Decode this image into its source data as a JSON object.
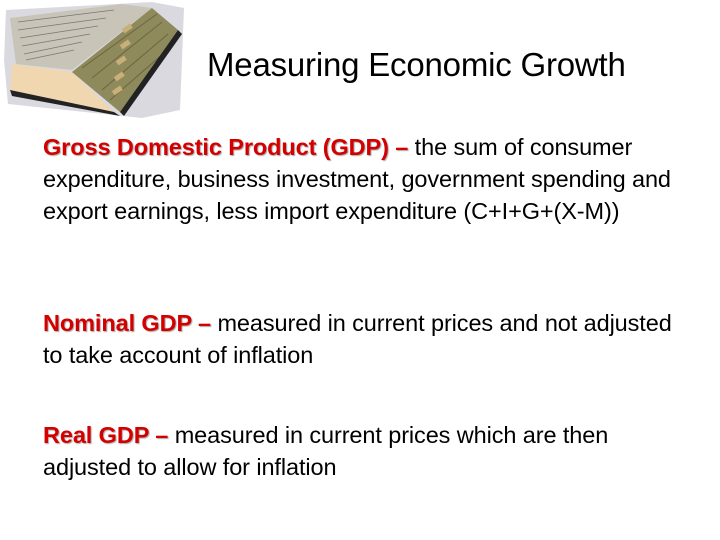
{
  "slide": {
    "title": "Measuring Economic Growth",
    "image": "open-book-with-tabs",
    "accent_color": "#d40000",
    "definitions": [
      {
        "term": "Gross Domestic Product (GDP) –",
        "text": " the sum of consumer expenditure, business investment, government spending and export earnings, less import expenditure (C+I+G+(X-M))"
      },
      {
        "term": "Nominal GDP –",
        "text": " measured in current prices and not adjusted to take account of inflation"
      },
      {
        "term": "Real GDP –",
        "text": " measured in current prices which are then adjusted to allow for inflation"
      }
    ]
  }
}
